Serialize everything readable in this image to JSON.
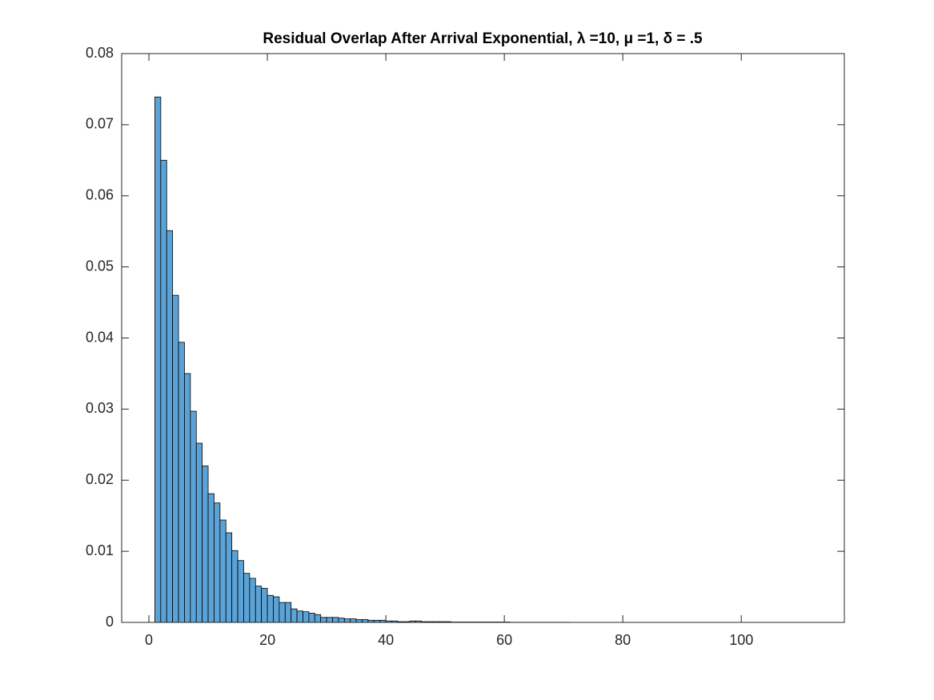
{
  "chart_data": {
    "type": "histogram",
    "title": "Residual Overlap After Arrival Exponential, λ =10, μ =1, δ = .5",
    "color": "#5ba3d6",
    "bins": [
      1,
      2,
      3,
      4,
      5,
      6,
      7,
      8,
      9,
      10,
      11,
      12,
      13,
      14,
      15,
      16,
      17,
      18,
      19,
      20,
      21,
      22,
      23,
      24,
      25,
      26,
      27,
      28,
      29,
      30,
      31,
      32,
      33,
      34,
      35,
      36,
      37,
      38,
      39,
      40,
      41,
      42,
      43,
      44,
      45,
      46,
      47,
      48,
      49,
      50,
      51,
      52,
      53,
      54,
      55,
      56,
      57,
      58,
      59,
      60,
      61,
      62,
      63,
      64,
      65,
      66,
      67,
      68,
      69,
      70,
      71,
      72,
      73,
      74,
      75,
      76,
      77,
      78,
      79,
      80,
      81,
      82,
      83,
      84,
      85,
      86,
      87,
      88,
      89,
      90,
      91,
      92,
      93,
      94,
      95,
      96,
      97,
      98,
      99,
      100,
      101,
      102,
      103,
      104,
      105,
      106,
      107,
      108,
      109,
      110,
      111,
      112
    ],
    "values": [
      0.0739,
      0.065,
      0.0551,
      0.046,
      0.0394,
      0.035,
      0.0297,
      0.0252,
      0.022,
      0.0181,
      0.0168,
      0.0144,
      0.0126,
      0.0101,
      0.0087,
      0.0069,
      0.0062,
      0.0051,
      0.0048,
      0.0038,
      0.0036,
      0.0028,
      0.0028,
      0.0019,
      0.0016,
      0.0015,
      0.0013,
      0.0011,
      0.0007,
      0.0007,
      0.0007,
      0.0006,
      0.0005,
      0.0005,
      0.0004,
      0.0004,
      0.0003,
      0.0003,
      0.0003,
      0.0002,
      0.0002,
      0.0001,
      0.0001,
      0.0002,
      0.0002,
      0.0001,
      0.0001,
      0.0001,
      0.0001,
      0.0001,
      5e-05,
      5e-05,
      5e-05,
      5e-05,
      5e-05,
      5e-05,
      5e-05,
      5e-05,
      5e-05,
      5e-05,
      2e-05,
      2e-05,
      2e-05,
      2e-05,
      2e-05,
      2e-05,
      2e-05,
      2e-05,
      2e-05,
      2e-05,
      1e-05,
      0,
      1e-05,
      0,
      1e-05,
      0,
      1e-05,
      0,
      1e-05,
      0,
      1e-05,
      0,
      1e-05,
      0,
      1e-05,
      0,
      1e-05,
      0,
      1e-05,
      0,
      1e-05,
      0,
      1e-05,
      0,
      1e-05,
      0,
      1e-05,
      0,
      1e-05,
      0,
      1e-05,
      0,
      1e-05,
      0,
      1e-05,
      0,
      1e-05,
      0,
      1e-05,
      0,
      1e-05
    ],
    "xlim": [
      -4.6,
      117.4
    ],
    "ylim": [
      0,
      0.08
    ],
    "xticks": [
      0,
      20,
      40,
      60,
      80,
      100
    ],
    "yticks": [
      0,
      0.01,
      0.02,
      0.03,
      0.04,
      0.05,
      0.06,
      0.07,
      0.08
    ]
  }
}
